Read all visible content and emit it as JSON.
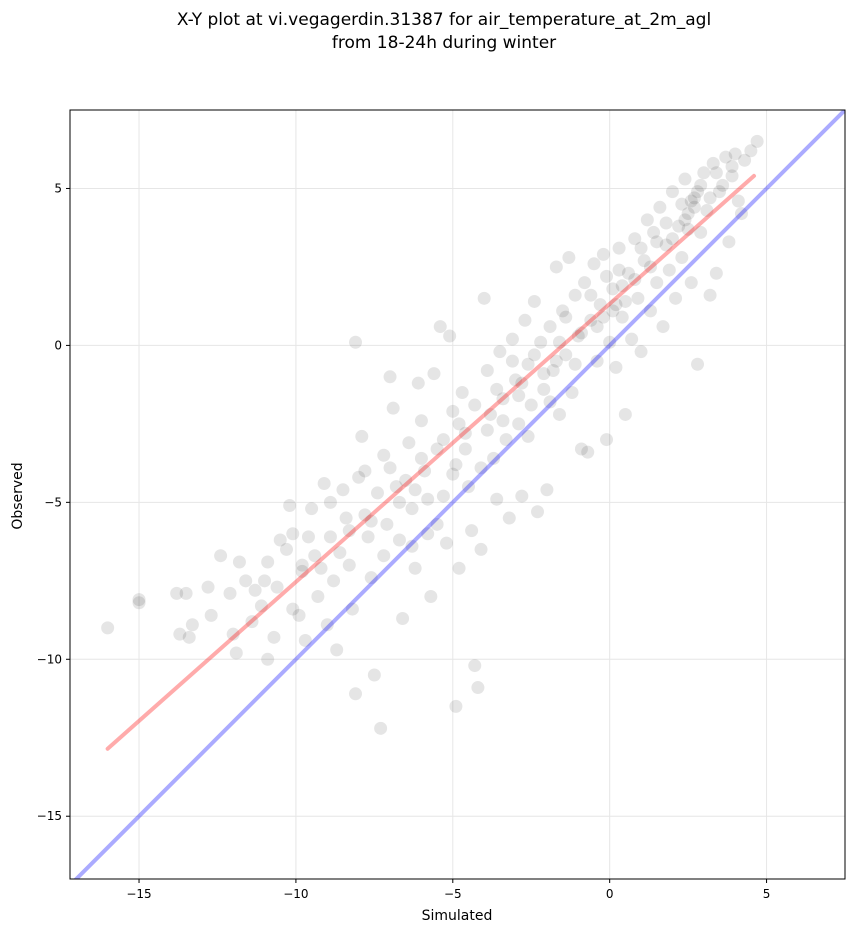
{
  "chart_data": {
    "type": "scatter",
    "title": "X-Y plot at vi.vegagerdin.31387 for air_temperature_at_2m_agl",
    "subtitle": "from 18-24h during winter",
    "xlabel": "Simulated",
    "ylabel": "Observed",
    "xlim": [
      -17.2,
      7.5
    ],
    "ylim": [
      -17.0,
      7.5
    ],
    "xticks": [
      -15,
      -10,
      -5,
      0,
      5
    ],
    "yticks": [
      -15,
      -10,
      -5,
      0,
      5
    ],
    "xtick_labels": [
      "−15",
      "−10",
      "−5",
      "0",
      "5"
    ],
    "ytick_labels": [
      "−15",
      "−10",
      "−5",
      "0",
      "5"
    ],
    "grid": true,
    "colors": {
      "points": "#000000",
      "regression_line": "#ff0000",
      "identity_line": "#0000ff",
      "grid": "#e6e6e6"
    },
    "series": [
      {
        "type": "scatter",
        "points": [
          [
            -16.0,
            -9.0
          ],
          [
            -15.0,
            -8.2
          ],
          [
            -15.0,
            -8.1
          ],
          [
            -13.8,
            -7.9
          ],
          [
            -13.5,
            -7.9
          ],
          [
            -13.7,
            -9.2
          ],
          [
            -13.3,
            -8.9
          ],
          [
            -13.4,
            -9.3
          ],
          [
            -12.8,
            -7.7
          ],
          [
            -12.7,
            -8.6
          ],
          [
            -12.4,
            -6.7
          ],
          [
            -12.1,
            -7.9
          ],
          [
            -12.0,
            -9.2
          ],
          [
            -11.9,
            -9.8
          ],
          [
            -11.6,
            -7.5
          ],
          [
            -11.3,
            -7.8
          ],
          [
            -11.0,
            -7.5
          ],
          [
            -11.1,
            -8.3
          ],
          [
            -10.9,
            -6.9
          ],
          [
            -10.7,
            -9.3
          ],
          [
            -10.9,
            -10.0
          ],
          [
            -10.6,
            -7.7
          ],
          [
            -10.3,
            -6.5
          ],
          [
            -10.2,
            -5.1
          ],
          [
            -10.1,
            -6.0
          ],
          [
            -9.9,
            -8.6
          ],
          [
            -9.8,
            -7.2
          ],
          [
            -9.7,
            -9.4
          ],
          [
            -9.5,
            -5.2
          ],
          [
            -9.4,
            -6.7
          ],
          [
            -9.3,
            -8.0
          ],
          [
            -9.1,
            -4.4
          ],
          [
            -9.0,
            -8.9
          ],
          [
            -8.9,
            -6.1
          ],
          [
            -8.8,
            -7.5
          ],
          [
            -8.7,
            -9.7
          ],
          [
            -8.5,
            -4.6
          ],
          [
            -8.4,
            -5.5
          ],
          [
            -8.3,
            -7.0
          ],
          [
            -8.2,
            -8.4
          ],
          [
            -8.1,
            0.1
          ],
          [
            -8.1,
            -11.1
          ],
          [
            -7.9,
            -2.9
          ],
          [
            -7.8,
            -4.0
          ],
          [
            -7.7,
            -6.1
          ],
          [
            -7.6,
            -7.4
          ],
          [
            -7.5,
            -10.5
          ],
          [
            -7.3,
            -12.2
          ],
          [
            -7.2,
            -3.5
          ],
          [
            -7.1,
            -5.7
          ],
          [
            -7.0,
            -1.0
          ],
          [
            -6.9,
            -2.0
          ],
          [
            -6.8,
            -4.5
          ],
          [
            -6.7,
            -6.2
          ],
          [
            -6.6,
            -8.7
          ],
          [
            -6.4,
            -3.1
          ],
          [
            -6.3,
            -5.2
          ],
          [
            -6.2,
            -7.1
          ],
          [
            -6.1,
            -1.2
          ],
          [
            -6.0,
            -2.4
          ],
          [
            -5.9,
            -4.0
          ],
          [
            -5.8,
            -6.0
          ],
          [
            -5.7,
            -8.0
          ],
          [
            -5.6,
            -0.9
          ],
          [
            -5.5,
            -3.3
          ],
          [
            -5.4,
            0.6
          ],
          [
            -5.3,
            -4.8
          ],
          [
            -5.2,
            -6.3
          ],
          [
            -5.1,
            0.3
          ],
          [
            -5.0,
            -2.1
          ],
          [
            -4.9,
            -3.8
          ],
          [
            -4.9,
            -11.5
          ],
          [
            -4.8,
            -7.1
          ],
          [
            -4.7,
            -1.5
          ],
          [
            -4.6,
            -2.8
          ],
          [
            -4.5,
            -4.5
          ],
          [
            -4.4,
            -5.9
          ],
          [
            -4.3,
            -10.2
          ],
          [
            -4.2,
            -10.9
          ],
          [
            -4.1,
            -6.5
          ],
          [
            -4.0,
            1.5
          ],
          [
            -3.9,
            -0.8
          ],
          [
            -3.8,
            -2.2
          ],
          [
            -3.7,
            -3.6
          ],
          [
            -3.6,
            -4.9
          ],
          [
            -3.5,
            -0.2
          ],
          [
            -3.4,
            -1.7
          ],
          [
            -3.3,
            -3.0
          ],
          [
            -3.2,
            -5.5
          ],
          [
            -3.1,
            0.2
          ],
          [
            -3.0,
            -1.1
          ],
          [
            -2.9,
            -2.5
          ],
          [
            -2.8,
            -4.8
          ],
          [
            -2.7,
            0.8
          ],
          [
            -2.6,
            -0.6
          ],
          [
            -2.5,
            -1.9
          ],
          [
            -2.4,
            1.4
          ],
          [
            -2.3,
            -5.3
          ],
          [
            -2.2,
            0.1
          ],
          [
            -2.1,
            -1.4
          ],
          [
            -2.0,
            -4.6
          ],
          [
            -1.9,
            0.6
          ],
          [
            -1.8,
            -0.8
          ],
          [
            -1.7,
            2.5
          ],
          [
            -1.6,
            -2.2
          ],
          [
            -1.5,
            1.1
          ],
          [
            -1.4,
            -0.3
          ],
          [
            -1.3,
            2.8
          ],
          [
            -1.2,
            -1.5
          ],
          [
            -1.1,
            1.6
          ],
          [
            -1.0,
            0.3
          ],
          [
            -0.9,
            -3.3
          ],
          [
            -0.8,
            2.0
          ],
          [
            -0.7,
            -3.4
          ],
          [
            -0.6,
            0.8
          ],
          [
            -0.5,
            2.6
          ],
          [
            -0.4,
            -0.5
          ],
          [
            -0.3,
            1.3
          ],
          [
            -0.2,
            2.9
          ],
          [
            -0.1,
            -3.0
          ],
          [
            0.0,
            0.1
          ],
          [
            0.1,
            1.8
          ],
          [
            0.2,
            -0.7
          ],
          [
            0.3,
            3.1
          ],
          [
            0.4,
            0.9
          ],
          [
            0.5,
            -2.2
          ],
          [
            0.6,
            2.3
          ],
          [
            0.7,
            0.2
          ],
          [
            0.8,
            3.4
          ],
          [
            0.9,
            1.5
          ],
          [
            1.0,
            -0.2
          ],
          [
            1.1,
            2.7
          ],
          [
            1.2,
            4.0
          ],
          [
            1.3,
            1.1
          ],
          [
            1.4,
            3.6
          ],
          [
            1.5,
            2.0
          ],
          [
            1.6,
            4.4
          ],
          [
            1.7,
            0.6
          ],
          [
            1.8,
            3.2
          ],
          [
            1.9,
            2.4
          ],
          [
            2.0,
            4.9
          ],
          [
            2.1,
            1.5
          ],
          [
            2.2,
            3.8
          ],
          [
            2.3,
            2.8
          ],
          [
            2.4,
            5.3
          ],
          [
            2.5,
            4.2
          ],
          [
            2.6,
            2.0
          ],
          [
            2.7,
            4.7
          ],
          [
            2.8,
            -0.6
          ],
          [
            2.9,
            3.6
          ],
          [
            3.0,
            5.5
          ],
          [
            3.1,
            4.3
          ],
          [
            3.2,
            1.6
          ],
          [
            3.3,
            5.8
          ],
          [
            3.4,
            2.3
          ],
          [
            3.5,
            4.9
          ],
          [
            3.7,
            6.0
          ],
          [
            3.8,
            3.3
          ],
          [
            3.9,
            5.4
          ],
          [
            4.0,
            6.1
          ],
          [
            4.1,
            4.6
          ],
          [
            4.2,
            4.2
          ],
          [
            4.3,
            5.9
          ],
          [
            4.5,
            6.2
          ],
          [
            4.7,
            6.5
          ],
          [
            -11.8,
            -6.9
          ],
          [
            -11.4,
            -8.8
          ],
          [
            -10.5,
            -6.2
          ],
          [
            -10.1,
            -8.4
          ],
          [
            -9.8,
            -7.0
          ],
          [
            -9.6,
            -6.1
          ],
          [
            -9.2,
            -7.1
          ],
          [
            -8.9,
            -5.0
          ],
          [
            -8.6,
            -6.6
          ],
          [
            -8.3,
            -5.9
          ],
          [
            -8.0,
            -4.2
          ],
          [
            -7.8,
            -5.4
          ],
          [
            -7.4,
            -4.7
          ],
          [
            -7.2,
            -6.7
          ],
          [
            -7.0,
            -3.9
          ],
          [
            -6.7,
            -5.0
          ],
          [
            -6.5,
            -4.3
          ],
          [
            -6.3,
            -6.4
          ],
          [
            -6.0,
            -3.6
          ],
          [
            -5.8,
            -4.9
          ],
          [
            -5.5,
            -5.7
          ],
          [
            -5.3,
            -3.0
          ],
          [
            -5.0,
            -4.1
          ],
          [
            -4.8,
            -2.5
          ],
          [
            -4.6,
            -3.3
          ],
          [
            -4.3,
            -1.9
          ],
          [
            -4.1,
            -3.9
          ],
          [
            -3.9,
            -2.7
          ],
          [
            -3.6,
            -1.4
          ],
          [
            -3.4,
            -2.4
          ],
          [
            -3.1,
            -0.5
          ],
          [
            -2.9,
            -1.6
          ],
          [
            -2.6,
            -2.9
          ],
          [
            -2.4,
            -0.3
          ],
          [
            -2.1,
            -0.9
          ],
          [
            -1.9,
            -1.8
          ],
          [
            -1.6,
            0.1
          ],
          [
            -1.4,
            0.9
          ],
          [
            -1.1,
            -0.6
          ],
          [
            -0.9,
            0.4
          ],
          [
            -0.6,
            1.6
          ],
          [
            -0.4,
            0.6
          ],
          [
            -0.1,
            2.2
          ],
          [
            0.1,
            1.1
          ],
          [
            0.3,
            2.4
          ],
          [
            0.5,
            1.4
          ],
          [
            0.8,
            2.1
          ],
          [
            1.0,
            3.1
          ],
          [
            1.3,
            2.5
          ],
          [
            1.5,
            3.3
          ],
          [
            1.8,
            3.9
          ],
          [
            2.0,
            3.4
          ],
          [
            2.3,
            4.5
          ],
          [
            2.5,
            3.7
          ],
          [
            2.7,
            4.4
          ],
          [
            2.9,
            5.1
          ],
          [
            3.2,
            4.7
          ],
          [
            3.4,
            5.5
          ],
          [
            3.6,
            5.1
          ],
          [
            3.9,
            5.7
          ],
          [
            2.6,
            4.6
          ],
          [
            2.8,
            4.9
          ],
          [
            2.4,
            4.0
          ],
          [
            0.2,
            1.3
          ],
          [
            0.4,
            1.9
          ],
          [
            -0.2,
            0.9
          ],
          [
            -1.7,
            -0.5
          ],
          [
            -2.8,
            -1.2
          ],
          [
            -6.2,
            -4.6
          ],
          [
            -7.6,
            -5.6
          ]
        ]
      },
      {
        "type": "line",
        "name": "regression",
        "x": [
          -16.0,
          4.6
        ],
        "y": [
          -12.85,
          5.4
        ]
      },
      {
        "type": "line",
        "name": "identity",
        "x": [
          -17.2,
          7.5
        ],
        "y": [
          -17.2,
          7.5
        ]
      }
    ]
  }
}
